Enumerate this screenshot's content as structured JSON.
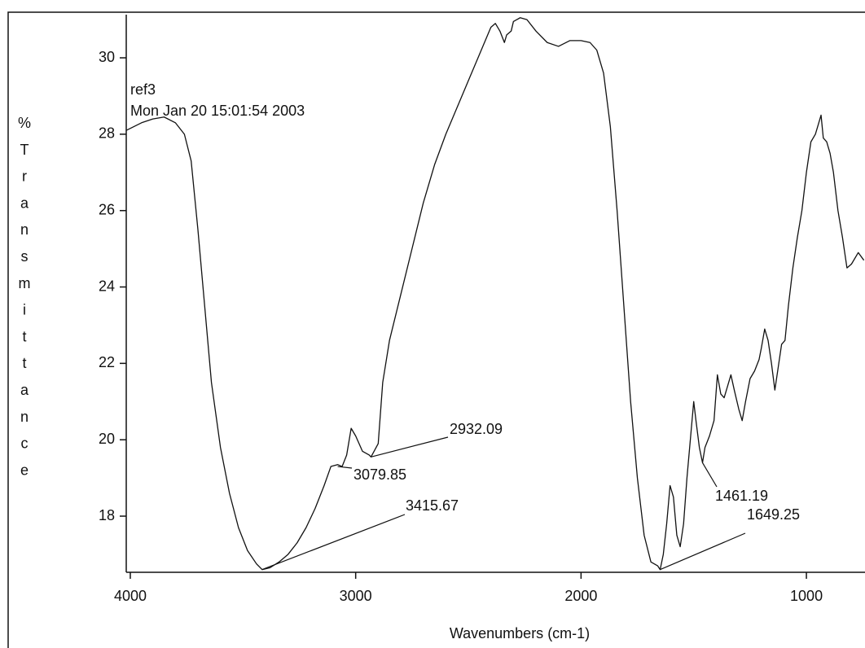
{
  "chart_data": {
    "type": "line",
    "color": "#111111",
    "x_label": "Wavenumbers (cm-1)",
    "y_label": "%Transmittance",
    "annotations": [
      "ref3",
      "Mon Jan 20 15:01:54 2003"
    ],
    "xlim": [
      4018,
      740
    ],
    "ylim": [
      16.53,
      31.13
    ],
    "xticks": [
      4000,
      3000,
      2000,
      1000
    ],
    "yticks": [
      18,
      20,
      22,
      24,
      26,
      28,
      30
    ],
    "x": [
      4018,
      3950,
      3900,
      3850,
      3800,
      3760,
      3730,
      3700,
      3670,
      3640,
      3600,
      3560,
      3520,
      3480,
      3440,
      3415,
      3380,
      3340,
      3300,
      3260,
      3220,
      3180,
      3140,
      3110,
      3080,
      3060,
      3040,
      3020,
      3000,
      2970,
      2940,
      2932,
      2900,
      2880,
      2850,
      2800,
      2750,
      2700,
      2650,
      2600,
      2550,
      2500,
      2450,
      2400,
      2380,
      2360,
      2340,
      2330,
      2310,
      2300,
      2270,
      2240,
      2200,
      2150,
      2100,
      2050,
      2000,
      1960,
      1930,
      1900,
      1870,
      1840,
      1810,
      1780,
      1750,
      1720,
      1690,
      1660,
      1649,
      1635,
      1620,
      1605,
      1590,
      1575,
      1560,
      1545,
      1530,
      1515,
      1500,
      1490,
      1475,
      1461,
      1450,
      1430,
      1410,
      1395,
      1380,
      1365,
      1350,
      1335,
      1320,
      1300,
      1285,
      1270,
      1250,
      1230,
      1210,
      1200,
      1185,
      1170,
      1155,
      1140,
      1125,
      1110,
      1095,
      1080,
      1060,
      1040,
      1020,
      1000,
      980,
      960,
      945,
      935,
      925,
      910,
      895,
      880,
      860,
      840,
      820,
      800,
      770,
      745
    ],
    "values": [
      28.1,
      28.3,
      28.4,
      28.45,
      28.3,
      28.0,
      27.3,
      25.5,
      23.5,
      21.5,
      19.8,
      18.6,
      17.7,
      17.1,
      16.75,
      16.6,
      16.65,
      16.8,
      17.0,
      17.3,
      17.7,
      18.2,
      18.8,
      19.3,
      19.35,
      19.3,
      19.6,
      20.3,
      20.1,
      19.7,
      19.6,
      19.55,
      19.9,
      21.5,
      22.6,
      23.8,
      25.0,
      26.2,
      27.2,
      28.0,
      28.7,
      29.4,
      30.1,
      30.8,
      30.9,
      30.7,
      30.4,
      30.6,
      30.7,
      30.95,
      31.05,
      31.0,
      30.7,
      30.4,
      30.3,
      30.45,
      30.45,
      30.4,
      30.2,
      29.6,
      28.2,
      26.0,
      23.5,
      21.0,
      19.0,
      17.5,
      16.8,
      16.7,
      16.6,
      17.0,
      17.8,
      18.8,
      18.5,
      17.5,
      17.2,
      17.8,
      19.0,
      20.0,
      21.0,
      20.5,
      19.8,
      19.4,
      19.8,
      20.1,
      20.5,
      21.7,
      21.2,
      21.1,
      21.4,
      21.7,
      21.3,
      20.8,
      20.5,
      21.0,
      21.6,
      21.8,
      22.1,
      22.4,
      22.9,
      22.6,
      22.0,
      21.3,
      21.9,
      22.5,
      22.6,
      23.5,
      24.5,
      25.3,
      26.0,
      27.0,
      27.8,
      28.0,
      28.3,
      28.5,
      27.9,
      27.8,
      27.5,
      27.0,
      26.0,
      25.3,
      24.5,
      24.6,
      24.9,
      24.7
    ],
    "peaks": [
      {
        "x": 2932.09,
        "y": 19.55
      },
      {
        "x": 3079.85,
        "y": 19.3
      },
      {
        "x": 3415.67,
        "y": 16.6
      },
      {
        "x": 1461.19,
        "y": 19.4
      },
      {
        "x": 1649.25,
        "y": 16.6
      }
    ]
  }
}
